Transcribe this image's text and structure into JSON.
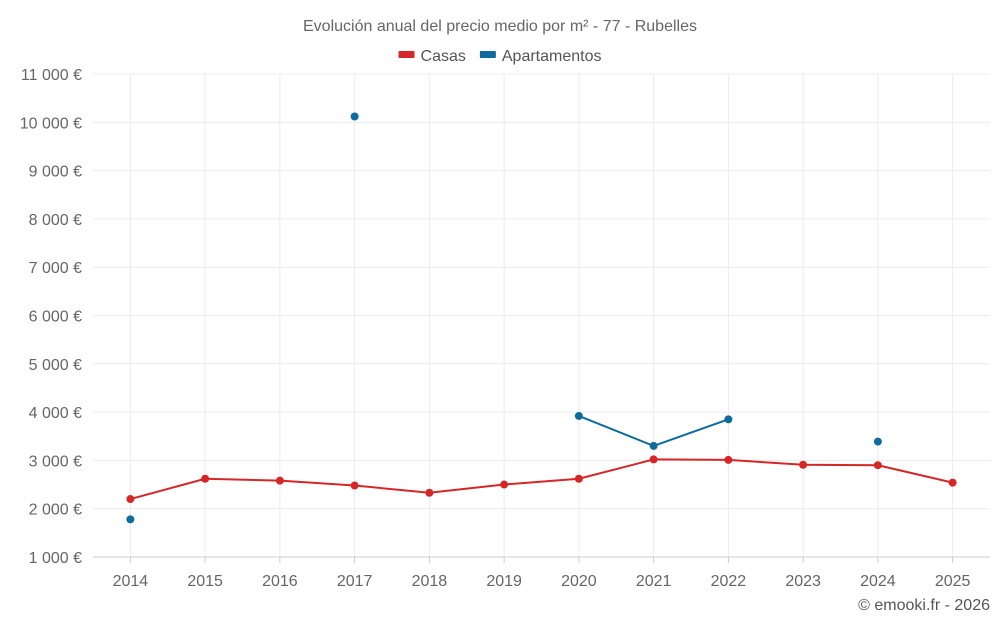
{
  "chart_data": {
    "type": "line",
    "title": "Evolución anual del precio medio por m² - 77 - Rubelles",
    "categories": [
      "2014",
      "2015",
      "2016",
      "2017",
      "2018",
      "2019",
      "2020",
      "2021",
      "2022",
      "2023",
      "2024",
      "2025"
    ],
    "ylim": [
      1000,
      11000
    ],
    "yticks": [
      1000,
      2000,
      3000,
      4000,
      5000,
      6000,
      7000,
      8000,
      9000,
      10000,
      11000
    ],
    "ytick_labels": [
      "1 000 €",
      "2 000 €",
      "3 000 €",
      "4 000 €",
      "5 000 €",
      "6 000 €",
      "7 000 €",
      "8 000 €",
      "9 000 €",
      "10 000 €",
      "11 000 €"
    ],
    "grid": true,
    "legend_position": "top-center",
    "series": [
      {
        "name": "Casas",
        "color": "#d62728",
        "values": [
          2200,
          2620,
          2580,
          2480,
          2330,
          2500,
          2620,
          3020,
          3010,
          2910,
          2900,
          2540
        ]
      },
      {
        "name": "Apartamentos",
        "color": "#0f6a9e",
        "values": [
          1780,
          null,
          null,
          10120,
          null,
          null,
          3920,
          3300,
          3850,
          null,
          3390,
          null
        ]
      }
    ]
  },
  "credit": "© emooki.fr - 2026"
}
